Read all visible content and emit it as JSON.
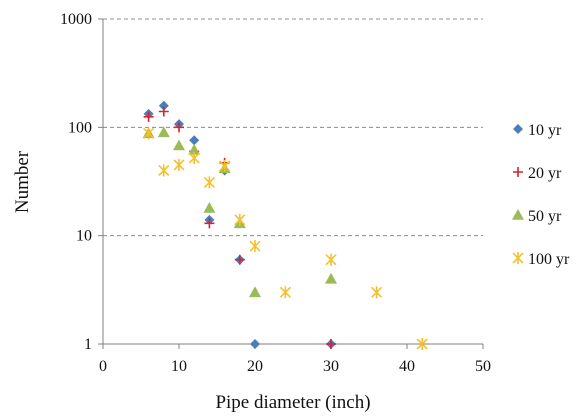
{
  "chart_data": {
    "type": "scatter",
    "title": "",
    "xlabel": "Pipe diameter (inch)",
    "ylabel": "Number",
    "xlim": [
      0,
      50
    ],
    "ylim": [
      1,
      1000
    ],
    "yscale": "log",
    "x_ticks": [
      "0",
      "10",
      "20",
      "30",
      "40",
      "50"
    ],
    "y_ticks": [
      "1",
      "10",
      "100",
      "1000"
    ],
    "grid": "horizontal dashed",
    "legend_position": "right",
    "series": [
      {
        "name": "10 yr",
        "marker": "diamond",
        "color": "#4a7ebb",
        "points": [
          [
            6,
            133
          ],
          [
            8,
            158
          ],
          [
            10,
            107
          ],
          [
            12,
            76
          ],
          [
            14,
            14
          ],
          [
            16,
            40
          ],
          [
            18,
            6
          ],
          [
            20,
            1
          ],
          [
            30,
            1
          ]
        ]
      },
      {
        "name": "20 yr",
        "marker": "plus",
        "color": "#d8232a",
        "points": [
          [
            6,
            125
          ],
          [
            8,
            140
          ],
          [
            10,
            100
          ],
          [
            12,
            60
          ],
          [
            14,
            13
          ],
          [
            16,
            47
          ],
          [
            18,
            6
          ],
          [
            30,
            1
          ]
        ]
      },
      {
        "name": "50 yr",
        "marker": "triangle",
        "color": "#9bbb59",
        "points": [
          [
            6,
            88
          ],
          [
            8,
            90
          ],
          [
            10,
            68
          ],
          [
            12,
            62
          ],
          [
            14,
            18
          ],
          [
            16,
            42
          ],
          [
            18,
            13
          ],
          [
            20,
            3
          ],
          [
            30,
            4
          ]
        ]
      },
      {
        "name": "100 yr",
        "marker": "star",
        "color": "#f5c02c",
        "points": [
          [
            6,
            88
          ],
          [
            8,
            40
          ],
          [
            10,
            45
          ],
          [
            12,
            52
          ],
          [
            14,
            31
          ],
          [
            16,
            44
          ],
          [
            18,
            14
          ],
          [
            20,
            8
          ],
          [
            24,
            3
          ],
          [
            30,
            6
          ],
          [
            36,
            3
          ],
          [
            42,
            1
          ]
        ]
      }
    ]
  }
}
